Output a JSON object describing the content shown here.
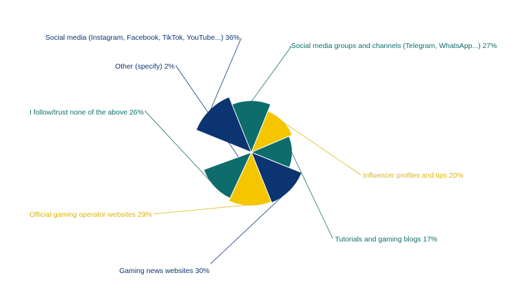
{
  "chart_data": {
    "type": "polar-area",
    "title": "",
    "categories": [
      "Social media (Instagram, Facebook, TikTok, YouTube...)",
      "Social media groups and channels (Telegram, WhatsApp...)",
      "Influencer profiles and tips",
      "Tutorials and gaming blogs",
      "Gaming news websites",
      "Official gaming operator websites",
      "I follow/trust none of the above",
      "Other (specify)"
    ],
    "values": [
      36,
      27,
      20,
      17,
      30,
      29,
      26,
      2
    ],
    "labels": [
      "Social media (Instagram, Facebook, TikTok, YouTube...) 36%",
      "Social media groups and channels (Telegram, WhatsApp...) 27%",
      "Influencer profiles and tips 20%",
      "Tutorials and gaming blogs 17%",
      "Gaming news websites 30%",
      "Official gaming operator websites 29%",
      "I follow/trust none of the above 26%",
      "Other (specify) 2%"
    ],
    "colors": [
      "#0b3470",
      "#0d6c6c",
      "#f5c600",
      "#0d6c6c",
      "#0b3470",
      "#f5c600",
      "#0d6c6c",
      "#0b3470"
    ],
    "label_colors": [
      "#0b3470",
      "#0d6c6c",
      "#e0b400",
      "#0d6c6c",
      "#0b3470",
      "#e0b400",
      "#0d6c6c",
      "#0b3470"
    ],
    "unit": "%",
    "legend": "none"
  }
}
